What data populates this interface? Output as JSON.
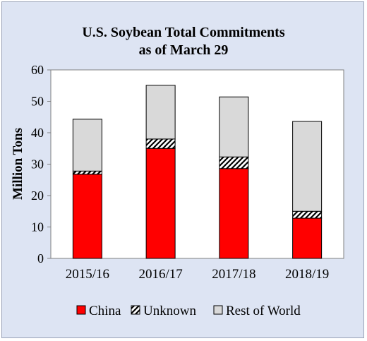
{
  "chart_data": {
    "type": "bar",
    "stacked": true,
    "title_lines": [
      "U.S. Soybean Total Commitments",
      "as of March 29"
    ],
    "xlabel": "",
    "ylabel": "Million Tons",
    "ylim": [
      0,
      60
    ],
    "yticks": [
      0,
      10,
      20,
      30,
      40,
      50,
      60
    ],
    "grid": false,
    "legend_position": "bottom",
    "categories": [
      "2015/16",
      "2016/17",
      "2017/18",
      "2018/19"
    ],
    "series": [
      {
        "name": "China",
        "values": [
          26.8,
          35.0,
          28.6,
          12.8
        ],
        "color": "#ff0000",
        "pattern": "solid"
      },
      {
        "name": "Unknown",
        "values": [
          1.0,
          3.0,
          3.7,
          2.2
        ],
        "color": "#ffffff",
        "pattern": "diagonal-hatch"
      },
      {
        "name": "Rest of World",
        "values": [
          16.5,
          17.1,
          19.1,
          28.6
        ],
        "color": "#d9d9d9",
        "pattern": "solid"
      }
    ]
  }
}
